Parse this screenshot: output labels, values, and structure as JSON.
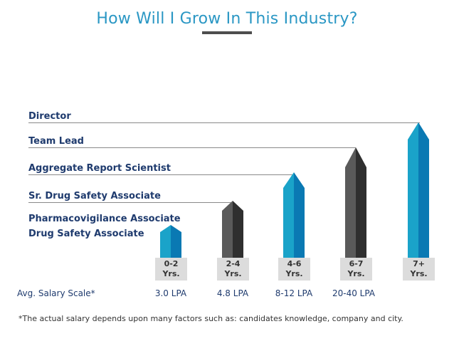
{
  "title": "How Will I Grow In This Industry?",
  "levels": [
    {
      "label": "Director"
    },
    {
      "label": "Team Lead"
    },
    {
      "label": "Aggregate Report Scientist"
    },
    {
      "label": "Sr. Drug Safety Associate"
    },
    {
      "label": "Pharmacovigilance Associate"
    },
    {
      "label": "Drug Safety Associate"
    }
  ],
  "stages": [
    {
      "years": "0-2",
      "unit": "Yrs.",
      "salary": "3.0 LPA",
      "color": "blue"
    },
    {
      "years": "2-4",
      "unit": "Yrs.",
      "salary": "4.8 LPA",
      "color": "dark"
    },
    {
      "years": "4-6",
      "unit": "Yrs.",
      "salary": "8-12 LPA",
      "color": "blue"
    },
    {
      "years": "6-7",
      "unit": "Yrs.",
      "salary": "20-40 LPA",
      "color": "dark"
    },
    {
      "years": "7+",
      "unit": "Yrs.",
      "salary": "",
      "color": "blue"
    }
  ],
  "salary_scale_label": "Avg. Salary Scale*",
  "footnote": "*The actual salary depends upon many factors such as: candidates knowledge, company and city.",
  "colors": {
    "title": "#2a97c4",
    "label": "#1f3b6e",
    "blue_light": "#1aa3c9",
    "blue_dark": "#0a79b3",
    "gray_light": "#5a5a5a",
    "gray_dark": "#2f2f2f"
  }
}
